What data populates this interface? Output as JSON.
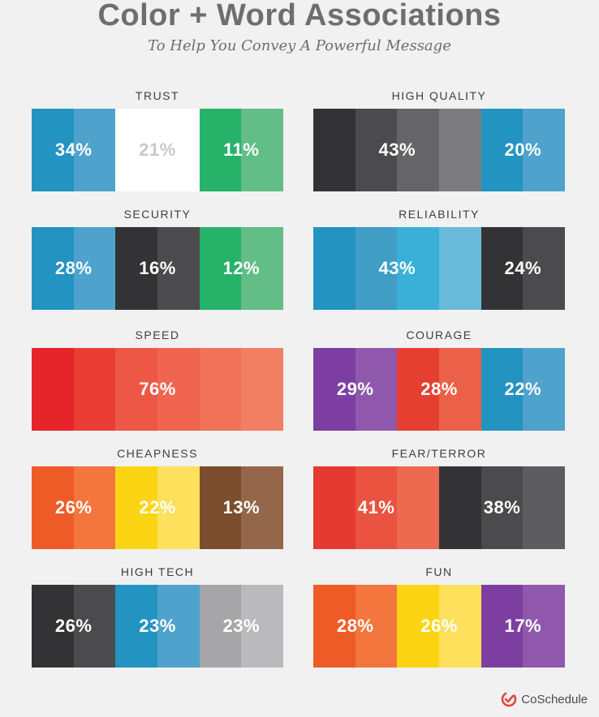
{
  "header": {
    "title": "Color + Word Associations",
    "subtitle": "To Help You Convey A Powerful Message"
  },
  "footer": {
    "brand": "CoSchedule",
    "brand_color": "#e2493f"
  },
  "chart_data": {
    "type": "stacked-bar",
    "panels": [
      {
        "label": "TRUST",
        "groups": [
          {
            "color": "blue",
            "value": 34,
            "text": "34%",
            "shades": [
              "#2393c1",
              "#4fa2cb"
            ]
          },
          {
            "color": "white",
            "value": 21,
            "text": "21%",
            "shades": [
              "#ffffff",
              "#ffffff"
            ],
            "text_color": "#c9c9cb"
          },
          {
            "color": "green",
            "value": 11,
            "text": "11%",
            "shades": [
              "#27b26a",
              "#63bd87"
            ]
          }
        ]
      },
      {
        "label": "HIGH QUALITY",
        "groups": [
          {
            "color": "black",
            "value": 43,
            "text": "43%",
            "shades": [
              "#333335",
              "#4b4b4d",
              "#656567",
              "#7c7c7e"
            ]
          },
          {
            "color": "blue",
            "value": 20,
            "text": "20%",
            "shades": [
              "#2393c1",
              "#4fa2cb"
            ]
          }
        ]
      },
      {
        "label": "SECURITY",
        "groups": [
          {
            "color": "blue",
            "value": 28,
            "text": "28%",
            "shades": [
              "#2393c1",
              "#4fa2cb"
            ]
          },
          {
            "color": "black",
            "value": 16,
            "text": "16%",
            "shades": [
              "#333335",
              "#4b4b4d"
            ]
          },
          {
            "color": "green",
            "value": 12,
            "text": "12%",
            "shades": [
              "#27b26a",
              "#63bd87"
            ]
          }
        ]
      },
      {
        "label": "RELIABILITY",
        "groups": [
          {
            "color": "blue",
            "value": 43,
            "text": "43%",
            "shades": [
              "#2393c1",
              "#3f9dc6",
              "#3ab0d8",
              "#69bada"
            ]
          },
          {
            "color": "black",
            "value": 24,
            "text": "24%",
            "shades": [
              "#333335",
              "#4b4b4d"
            ]
          }
        ]
      },
      {
        "label": "SPEED",
        "groups": [
          {
            "color": "red",
            "value": 76,
            "text": "76%",
            "shades": [
              "#e6252b",
              "#ea3d35",
              "#ec5746",
              "#ef6550",
              "#f07259",
              "#f27e64"
            ]
          }
        ]
      },
      {
        "label": "COURAGE",
        "groups": [
          {
            "color": "purple",
            "value": 29,
            "text": "29%",
            "shades": [
              "#7d3ea1",
              "#8f58ac"
            ]
          },
          {
            "color": "red",
            "value": 28,
            "text": "28%",
            "shades": [
              "#e53f32",
              "#ea6048"
            ]
          },
          {
            "color": "blue",
            "value": 22,
            "text": "22%",
            "shades": [
              "#2393c1",
              "#4fa2cb"
            ]
          }
        ]
      },
      {
        "label": "CHEAPNESS",
        "groups": [
          {
            "color": "orange",
            "value": 26,
            "text": "26%",
            "shades": [
              "#ef5b27",
              "#f2763d"
            ]
          },
          {
            "color": "yellow",
            "value": 22,
            "text": "22%",
            "shades": [
              "#fbd514",
              "#fde05c"
            ]
          },
          {
            "color": "brown",
            "value": 13,
            "text": "13%",
            "shades": [
              "#7b4d2c",
              "#94674a"
            ]
          }
        ]
      },
      {
        "label": "FEAR/TERROR",
        "groups": [
          {
            "color": "red",
            "value": 41,
            "text": "41%",
            "shades": [
              "#e53a32",
              "#e9533f",
              "#ec6a50"
            ]
          },
          {
            "color": "black",
            "value": 38,
            "text": "38%",
            "shades": [
              "#333335",
              "#4b4b4d",
              "#5d5d5f"
            ]
          }
        ]
      },
      {
        "label": "HIGH TECH",
        "groups": [
          {
            "color": "black",
            "value": 26,
            "text": "26%",
            "shades": [
              "#333335",
              "#4b4b4d"
            ]
          },
          {
            "color": "blue",
            "value": 23,
            "text": "23%",
            "shades": [
              "#2393c1",
              "#4fa2cb"
            ]
          },
          {
            "color": "gray",
            "value": 23,
            "text": "23%",
            "shades": [
              "#a6a6a9",
              "#bababd"
            ]
          }
        ]
      },
      {
        "label": "FUN",
        "groups": [
          {
            "color": "orange",
            "value": 28,
            "text": "28%",
            "shades": [
              "#ef5b27",
              "#f2763d"
            ]
          },
          {
            "color": "yellow",
            "value": 26,
            "text": "26%",
            "shades": [
              "#fbd514",
              "#fde05c"
            ]
          },
          {
            "color": "purple",
            "value": 17,
            "text": "17%",
            "shades": [
              "#7d3ea1",
              "#8f58ac"
            ]
          }
        ]
      }
    ]
  }
}
